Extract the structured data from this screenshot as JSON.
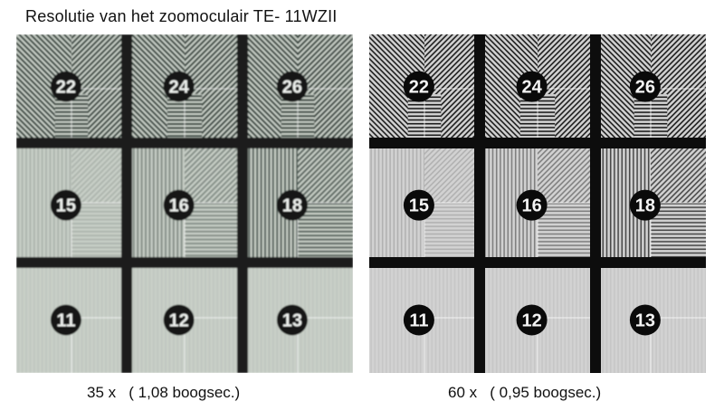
{
  "title": "Resolutie van het zoomoculair TE- 11WZII",
  "panels": [
    {
      "caption": "35 x   ( 1,08 boogsec.)",
      "tone": "greenish-blurred",
      "colors": {
        "bg": "#c9d0c8",
        "stripes": "#23302b",
        "bar": "#1b1e1c",
        "disc": "#141816",
        "num": "#eef1ee"
      },
      "rows": [
        [
          "22",
          "24",
          "26"
        ],
        [
          "15",
          "16",
          "18"
        ],
        [
          "11",
          "12",
          "13"
        ]
      ]
    },
    {
      "caption": "60 x   ( 0,95 boogsec.)",
      "tone": "grey-sharp",
      "colors": {
        "bg": "#d2d2d2",
        "stripes": "#1c1c1c",
        "bar": "#0d0d0d",
        "disc": "#0a0a0a",
        "num": "#f4f4f4"
      },
      "rows": [
        [
          "22",
          "24",
          "26"
        ],
        [
          "15",
          "16",
          "18"
        ],
        [
          "11",
          "12",
          "13"
        ]
      ]
    }
  ]
}
